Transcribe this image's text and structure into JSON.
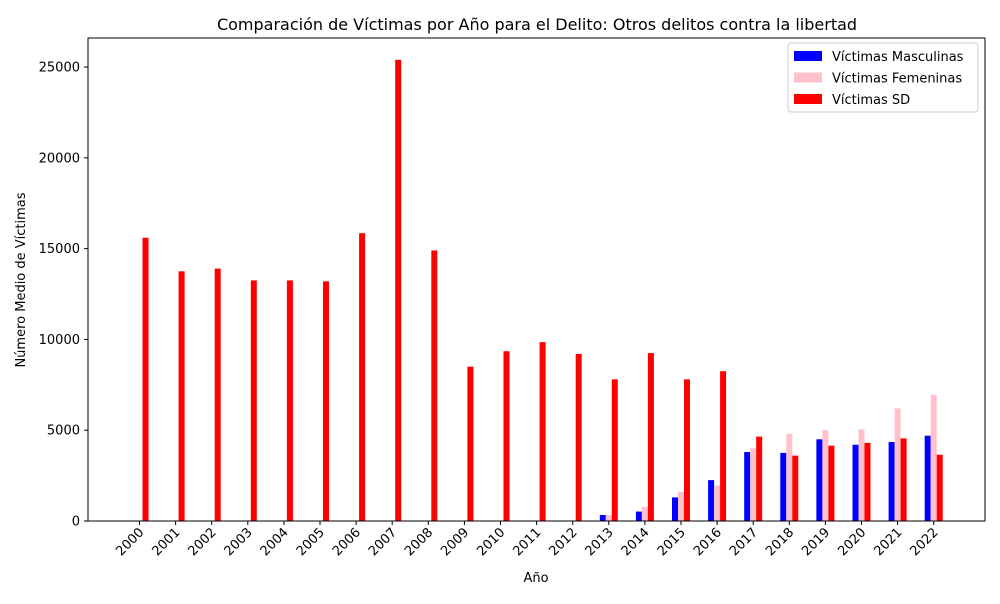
{
  "chart_data": {
    "type": "bar",
    "title": "Comparación de Víctimas por Año para el Delito: Otros delitos contra la libertad",
    "xlabel": "Año",
    "ylabel": "Número Medio de Víctimas",
    "ylim": [
      0,
      26600
    ],
    "yticks": [
      0,
      5000,
      10000,
      15000,
      20000,
      25000
    ],
    "grid": false,
    "legend_position": "top-right",
    "categories": [
      "2000",
      "2001",
      "2002",
      "2003",
      "2004",
      "2005",
      "2006",
      "2007",
      "2008",
      "2009",
      "2010",
      "2011",
      "2012",
      "2013",
      "2014",
      "2015",
      "2016",
      "2017",
      "2018",
      "2019",
      "2020",
      "2021",
      "2022"
    ],
    "series": [
      {
        "name": "Víctimas Masculinas",
        "color": "#0000ff",
        "values": [
          0,
          0,
          0,
          0,
          0,
          0,
          0,
          0,
          0,
          0,
          0,
          0,
          0,
          330,
          520,
          1300,
          2250,
          3800,
          3750,
          4500,
          4200,
          4350,
          4700
        ]
      },
      {
        "name": "Víctimas Femeninas",
        "color": "#ffc0cb",
        "values": [
          0,
          0,
          0,
          0,
          0,
          0,
          0,
          0,
          0,
          0,
          0,
          0,
          0,
          320,
          780,
          1600,
          1950,
          4000,
          4800,
          5000,
          5050,
          6200,
          6950
        ]
      },
      {
        "name": "Víctimas SD",
        "color": "#ff0000",
        "values": [
          15600,
          13750,
          13900,
          13250,
          13250,
          13200,
          15850,
          25400,
          14900,
          8500,
          9350,
          9850,
          9200,
          7800,
          9250,
          7800,
          8250,
          4650,
          3600,
          4150,
          4300,
          4550,
          3650
        ]
      }
    ]
  }
}
